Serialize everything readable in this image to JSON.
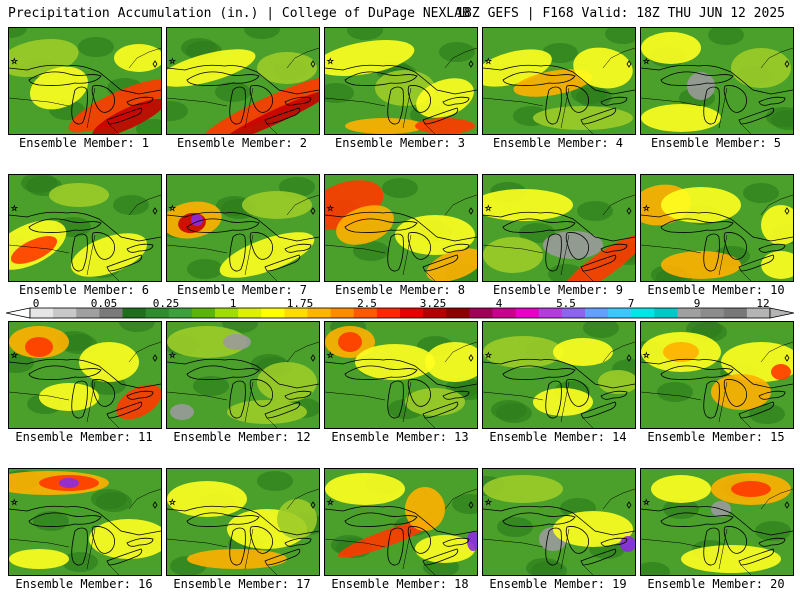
{
  "header": {
    "left": "Precipitation Accumulation (in.) | College of DuPage NEXLAB",
    "right": "18Z GEFS | F168 Valid: 18Z THU JUN 12 2025"
  },
  "panels": [
    {
      "label": "Ensemble Member: 1"
    },
    {
      "label": "Ensemble Member: 2"
    },
    {
      "label": "Ensemble Member: 3"
    },
    {
      "label": "Ensemble Member: 4"
    },
    {
      "label": "Ensemble Member: 5"
    },
    {
      "label": "Ensemble Member: 6"
    },
    {
      "label": "Ensemble Member: 7"
    },
    {
      "label": "Ensemble Member: 8"
    },
    {
      "label": "Ensemble Member: 9"
    },
    {
      "label": "Ensemble Member: 10"
    },
    {
      "label": "Ensemble Member: 11"
    },
    {
      "label": "Ensemble Member: 12"
    },
    {
      "label": "Ensemble Member: 13"
    },
    {
      "label": "Ensemble Member: 14"
    },
    {
      "label": "Ensemble Member: 15"
    },
    {
      "label": "Ensemble Member: 16"
    },
    {
      "label": "Ensemble Member: 17"
    },
    {
      "label": "Ensemble Member: 18"
    },
    {
      "label": "Ensemble Member: 19"
    },
    {
      "label": "Ensemble Member: 20"
    }
  ],
  "colorbar": {
    "ticks": [
      "0",
      "0.05",
      "0.25",
      "1",
      "1.75",
      "2.5",
      "3.25",
      "4",
      "5.5",
      "7",
      "9",
      "12"
    ],
    "colors": [
      "#e6e6e6",
      "#c8c8c8",
      "#a0a0a0",
      "#7a7a7a",
      "#1e6e1e",
      "#2e8b2e",
      "#3ca03c",
      "#5ab40a",
      "#a0dc0a",
      "#dcf000",
      "#ffff00",
      "#ffdc00",
      "#ffb400",
      "#ff8c00",
      "#ff5a00",
      "#ff2800",
      "#e60000",
      "#b40000",
      "#8c0000",
      "#a0005a",
      "#c8008c",
      "#e600c8",
      "#b43cdc",
      "#8c64f0",
      "#64a0ff",
      "#3cc8ff",
      "#00e6e6",
      "#00c8c8",
      "#a0a0a0",
      "#8c8c8c",
      "#787878",
      "#b4b4b4"
    ]
  },
  "legend_colors": {
    "dark_green": "#2e7d1e",
    "green": "#4aa02a",
    "light_green": "#9ccc28",
    "yellow": "#ffff20",
    "orange": "#ffb000",
    "red": "#ff3a00",
    "dark_red": "#c80000",
    "gray": "#9a9a9a",
    "purple": "#8a2be2"
  }
}
